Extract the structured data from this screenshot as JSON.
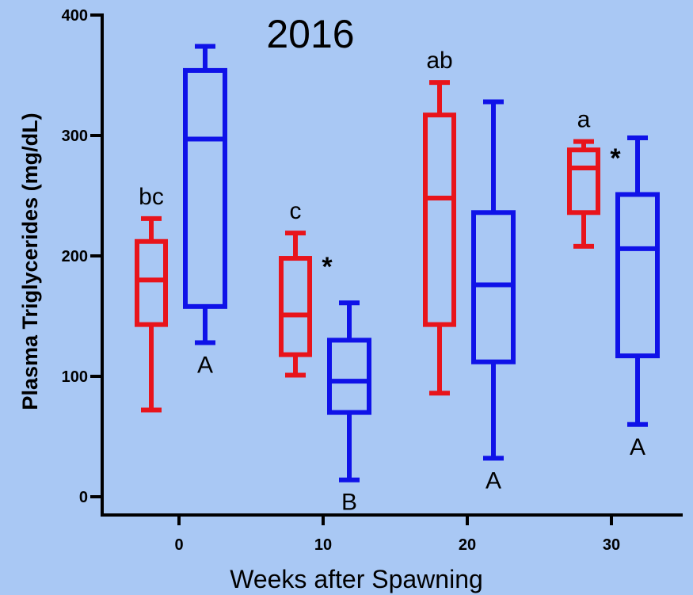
{
  "chart_data": {
    "type": "box",
    "title": "2016",
    "xlabel": "Weeks after Spawning",
    "ylabel": "Plasma Triglycerides (mg/dL)",
    "ylim": [
      0,
      400
    ],
    "yticks": [
      0,
      100,
      200,
      300,
      400
    ],
    "xticks": [
      0,
      10,
      20,
      30
    ],
    "grid": false,
    "colors": {
      "red_group": "#e8141b",
      "blue_group": "#0f12e8"
    },
    "boxes": [
      {
        "week": 0,
        "group": "red",
        "min": 72,
        "q1": 143,
        "median": 180,
        "q3": 212,
        "max": 231
      },
      {
        "week": 0,
        "group": "blue",
        "min": 128,
        "q1": 158,
        "median": 297,
        "q3": 354,
        "max": 374
      },
      {
        "week": 10,
        "group": "red",
        "min": 101,
        "q1": 118,
        "median": 151,
        "q3": 198,
        "max": 219
      },
      {
        "week": 10,
        "group": "blue",
        "min": 14,
        "q1": 70,
        "median": 96,
        "q3": 130,
        "max": 161
      },
      {
        "week": 20,
        "group": "red",
        "min": 86,
        "q1": 143,
        "median": 248,
        "q3": 317,
        "max": 344
      },
      {
        "week": 20,
        "group": "blue",
        "min": 32,
        "q1": 112,
        "median": 176,
        "q3": 236,
        "max": 328
      },
      {
        "week": 30,
        "group": "red",
        "min": 208,
        "q1": 236,
        "median": 273,
        "q3": 288,
        "max": 295
      },
      {
        "week": 30,
        "group": "blue",
        "min": 60,
        "q1": 117,
        "median": 206,
        "q3": 251,
        "max": 298
      }
    ],
    "annotations": [
      {
        "text": "bc",
        "week": 0,
        "group": "red",
        "position": "above"
      },
      {
        "text": "A",
        "week": 0,
        "group": "blue",
        "position": "below"
      },
      {
        "text": "c",
        "week": 10,
        "group": "red",
        "position": "above"
      },
      {
        "text": "*",
        "week": 10,
        "group": "red",
        "position": "right"
      },
      {
        "text": "B",
        "week": 10,
        "group": "blue",
        "position": "below"
      },
      {
        "text": "ab",
        "week": 20,
        "group": "red",
        "position": "above"
      },
      {
        "text": "A",
        "week": 20,
        "group": "blue",
        "position": "below"
      },
      {
        "text": "a",
        "week": 30,
        "group": "red",
        "position": "above"
      },
      {
        "text": "*",
        "week": 30,
        "group": "red",
        "position": "right"
      },
      {
        "text": "A",
        "week": 30,
        "group": "blue",
        "position": "below"
      }
    ]
  }
}
